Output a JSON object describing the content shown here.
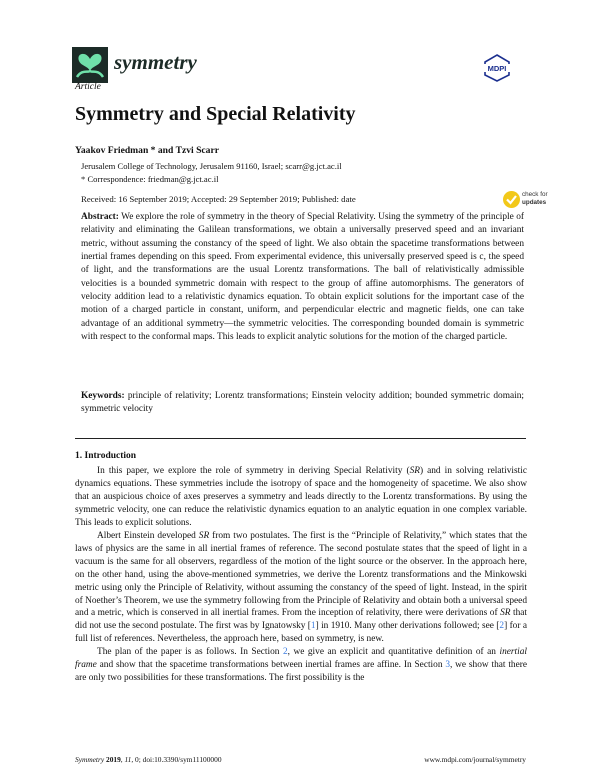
{
  "header": {
    "journal_name": "symmetry",
    "publisher_logo": "MDPI",
    "check_updates": {
      "line1": "check for",
      "line2": "updates"
    },
    "colors": {
      "journal": "#1c2b27",
      "logo_accent": "#6fe0a9",
      "publisher": "#1b2f8f",
      "check_badge": "#f2c81a",
      "link": "#3b7ce0"
    }
  },
  "article": {
    "type": "Article",
    "title": "Symmetry and Special Relativity",
    "authors": "Yaakov Friedman * and Tzvi Scarr",
    "affiliation": "Jerusalem College of Technology, Jerusalem 91160, Israel; scarr@g.jct.ac.il",
    "correspondence": "*  Correspondence: friedman@g.jct.ac.il",
    "dates": "Received: 16 September 2019; Accepted: 29 September 2019; Published: date",
    "abstract_label": "Abstract:",
    "abstract": " We explore the role of symmetry in the theory of Special Relativity. Using the symmetry of the principle of relativity and eliminating the Galilean transformations, we obtain a universally preserved speed and an invariant metric, without assuming the constancy of the speed of light. We also obtain the spacetime transformations between inertial frames depending on this speed. From experimental evidence, this universally preserved speed is c, the speed of light, and the transformations are the usual Lorentz transformations. The ball of relativistically admissible velocities is a bounded symmetric domain with respect to the group of affine automorphisms. The generators of velocity addition lead to a relativistic dynamics equation. To obtain explicit solutions for the important case of the motion of a charged particle in constant, uniform, and perpendicular electric and magnetic fields, one can take advantage of an additional symmetry—the symmetric velocities. The corresponding bounded domain is symmetric with respect to the conformal maps. This leads to explicit analytic solutions for the motion of the charged particle.",
    "keywords_label": "Keywords:",
    "keywords": " principle of relativity; Lorentz transformations; Einstein velocity addition; bounded symmetric domain; symmetric velocity"
  },
  "introduction": {
    "heading": "1. Introduction",
    "paragraphs": [
      [
        {
          "t": "In this paper, we explore the role of symmetry in deriving Special Relativity ("
        },
        {
          "t": "SR",
          "s": "i"
        },
        {
          "t": ") and in solving relativistic dynamics equations. These symmetries include the isotropy of space and the homogeneity of spacetime. We also show that an auspicious choice of axes preserves a symmetry and leads directly to the Lorentz transformations. By using the symmetric velocity, one can reduce the relativistic dynamics equation to an analytic equation in one complex variable. This leads to explicit solutions."
        }
      ],
      [
        {
          "t": "Albert Einstein developed "
        },
        {
          "t": "SR",
          "s": "i"
        },
        {
          "t": " from two postulates. The first is the “Principle of Relativity,” which states that the laws of physics are the same in all inertial frames of reference. The second postulate states that the speed of light in a vacuum is the same for all observers, regardless of the motion of the light source or the observer. In the approach here, on the other hand, using the above-mentioned symmetries, we derive the Lorentz transformations and the Minkowski metric using only the Principle of Relativity, without assuming the constancy of the speed of light. Instead, in the spirit of Noether’s Theorem, we use the symmetry following from the Principle of Relativity and obtain both a universal speed and a metric, which is conserved in all inertial frames. From the inception of relativity, there were derivations of "
        },
        {
          "t": "SR",
          "s": "i"
        },
        {
          "t": " that did not use the second postulate. The first was by Ignatowsky ["
        },
        {
          "t": "1",
          "s": "link"
        },
        {
          "t": "] in 1910. Many other derivations followed; see ["
        },
        {
          "t": "2",
          "s": "link"
        },
        {
          "t": "] for a full list of references. Nevertheless, the approach here, based on symmetry, is new."
        }
      ],
      [
        {
          "t": "The plan of the paper is as follows. In Section "
        },
        {
          "t": "2",
          "s": "link"
        },
        {
          "t": ", we give an explicit and quantitative definition of an "
        },
        {
          "t": "inertial frame",
          "s": "i"
        },
        {
          "t": " and show that the spacetime transformations between inertial frames are affine. In Section "
        },
        {
          "t": "3",
          "s": "link"
        },
        {
          "t": ", we show that there are only two possibilities for these transformations. The first possibility is the"
        }
      ]
    ]
  },
  "footer": {
    "journal": "Symmetry",
    "year": "2019",
    "volume": "11",
    "rest": ", 0; doi:10.3390/sym11100000",
    "url": "www.mdpi.com/journal/symmetry"
  }
}
